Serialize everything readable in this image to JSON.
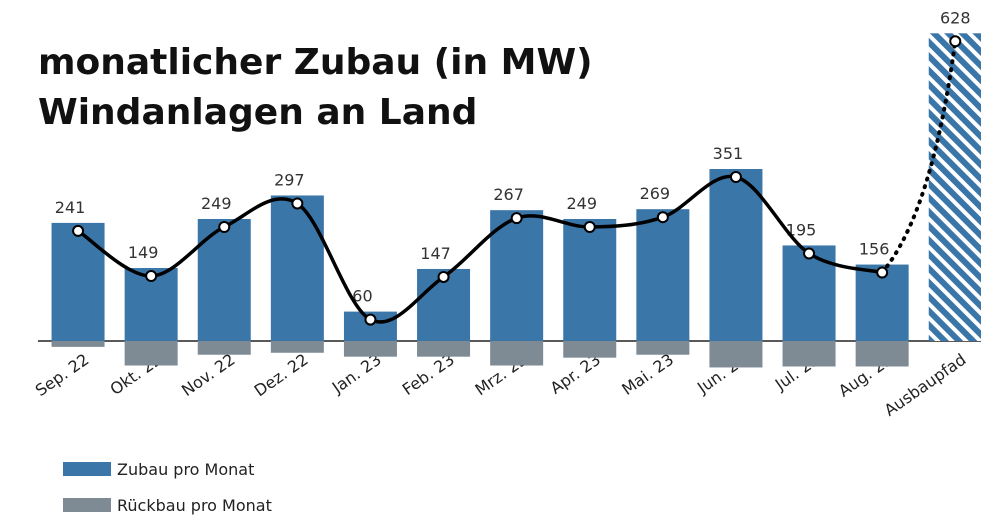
{
  "chart_data": {
    "type": "bar",
    "title": [
      "monatlicher Zubau (in MW)",
      "Windanlagen an Land"
    ],
    "categories": [
      "Sep. 22",
      "Okt. 22",
      "Nov. 22",
      "Dez. 22",
      "Jan. 23",
      "Feb. 23",
      "Mrz. 23",
      "Apr. 23",
      "Mai. 23",
      "Jun. 23",
      "Jul. 23",
      "Aug. 23",
      "Ausbaupfad"
    ],
    "series": [
      {
        "name": "Zubau pro Monat",
        "color": "#3b76a9",
        "values": [
          241,
          149,
          249,
          297,
          60,
          147,
          267,
          249,
          269,
          351,
          195,
          156,
          628
        ]
      },
      {
        "name": "Rückbau pro Monat",
        "color": "#7e8b95",
        "values": [
          -12,
          -50,
          -28,
          -24,
          -32,
          -32,
          -50,
          -34,
          -28,
          -54,
          -52,
          -52,
          null
        ]
      }
    ]
  }
}
